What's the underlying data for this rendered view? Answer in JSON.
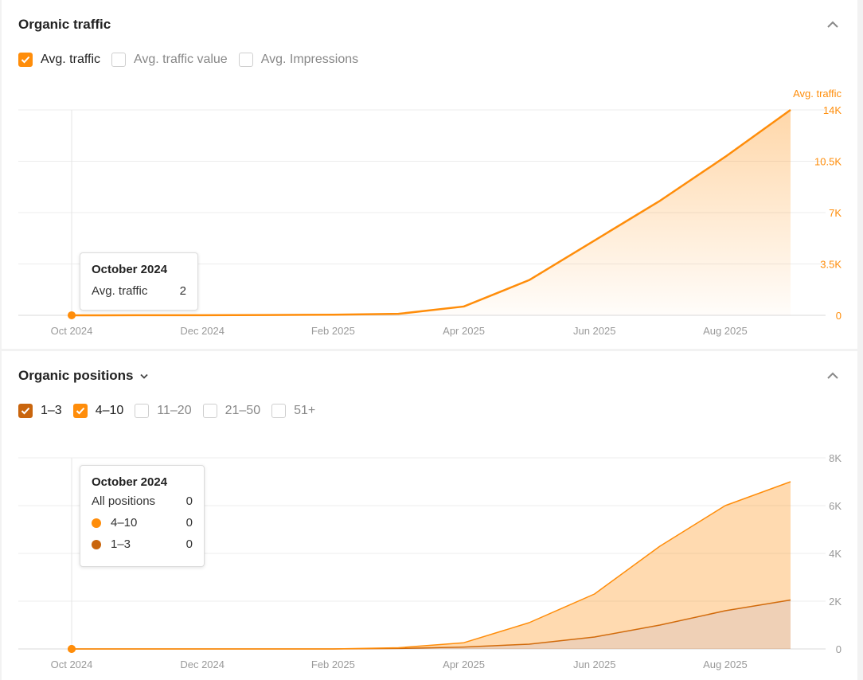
{
  "traffic_panel": {
    "title": "Organic traffic",
    "options": [
      {
        "label": "Avg. traffic",
        "checked": true
      },
      {
        "label": "Avg. traffic value",
        "checked": false
      },
      {
        "label": "Avg. Impressions",
        "checked": false
      }
    ],
    "tooltip": {
      "title": "October 2024",
      "rows": [
        {
          "label": "Avg. traffic",
          "value": "2"
        }
      ]
    }
  },
  "positions_panel": {
    "title": "Organic positions",
    "options": [
      {
        "label": "1–3",
        "checked": true,
        "color": "#c9650d"
      },
      {
        "label": "4–10",
        "checked": true,
        "color": "#ff8d0a"
      },
      {
        "label": "11–20",
        "checked": false
      },
      {
        "label": "21–50",
        "checked": false
      },
      {
        "label": "51+",
        "checked": false
      }
    ],
    "tooltip": {
      "title": "October 2024",
      "rows": [
        {
          "label": "All positions",
          "value": "0"
        },
        {
          "label": "4–10",
          "value": "0",
          "color": "#ff8d0a"
        },
        {
          "label": "1–3",
          "value": "0",
          "color": "#c9650d"
        }
      ]
    }
  },
  "chart_data": [
    {
      "type": "area",
      "x": [
        "2024-10",
        "2024-11",
        "2024-12",
        "2025-01",
        "2025-02",
        "2025-03",
        "2025-04",
        "2025-05",
        "2025-06",
        "2025-07",
        "2025-08",
        "2025-09"
      ],
      "xticks": [
        "Oct 2024",
        "Dec 2024",
        "Feb 2025",
        "Apr 2025",
        "Jun 2025",
        "Aug 2025"
      ],
      "yticks": [
        "0",
        "3.5K",
        "7K",
        "10.5K",
        "14K"
      ],
      "ylabel": "Avg. traffic",
      "ylim": [
        0,
        14000
      ],
      "grid": true,
      "series": [
        {
          "name": "Avg. traffic",
          "color": "#ff8d0a",
          "values": [
            2,
            5,
            10,
            20,
            40,
            100,
            600,
            2400,
            5100,
            7800,
            10800,
            14000
          ]
        }
      ]
    },
    {
      "type": "area",
      "x": [
        "2024-10",
        "2024-11",
        "2024-12",
        "2025-01",
        "2025-02",
        "2025-03",
        "2025-04",
        "2025-05",
        "2025-06",
        "2025-07",
        "2025-08",
        "2025-09"
      ],
      "xticks": [
        "Oct 2024",
        "Dec 2024",
        "Feb 2025",
        "Apr 2025",
        "Jun 2025",
        "Aug 2025"
      ],
      "yticks": [
        "0",
        "2K",
        "4K",
        "6K",
        "8K"
      ],
      "ylim": [
        0,
        8000
      ],
      "grid": true,
      "stacked": true,
      "series": [
        {
          "name": "1–3",
          "color": "#c9650d",
          "values": [
            0,
            0,
            0,
            0,
            0,
            20,
            80,
            200,
            500,
            1000,
            1600,
            2050
          ]
        },
        {
          "name": "4–10",
          "color": "#ff8d0a",
          "values": [
            0,
            0,
            0,
            0,
            0,
            30,
            180,
            900,
            1800,
            3300,
            4400,
            4950
          ]
        }
      ]
    }
  ]
}
